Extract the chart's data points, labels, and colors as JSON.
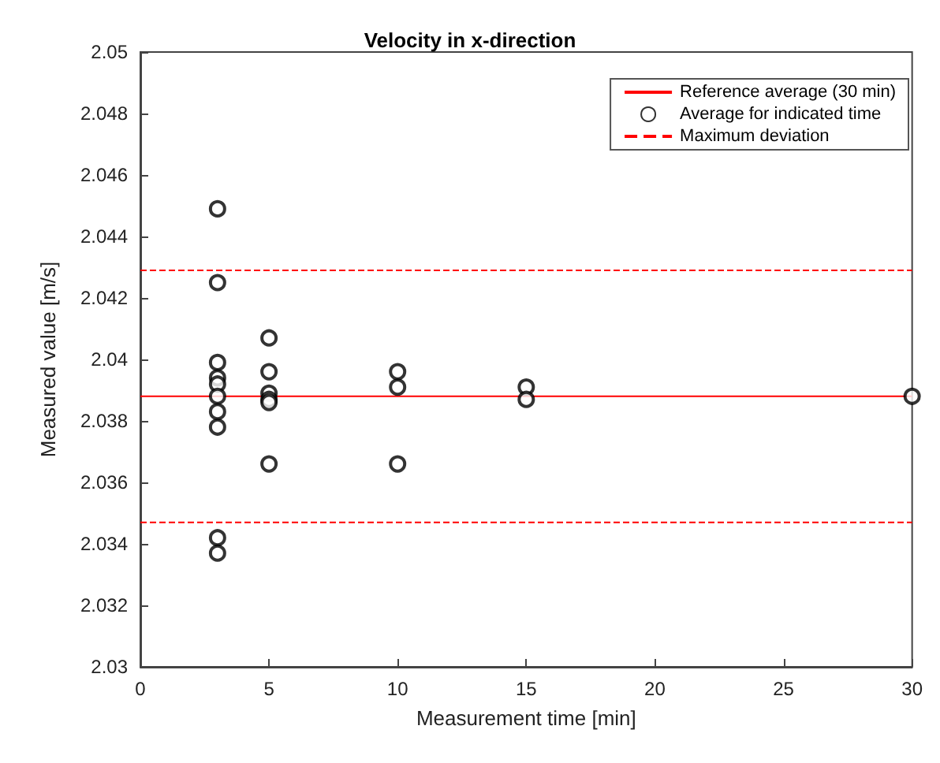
{
  "chart_data": {
    "type": "scatter",
    "title": "Velocity in x-direction",
    "xlabel": "Measurement time [min]",
    "ylabel": "Measured value [m/s]",
    "xlim": [
      0,
      30
    ],
    "xticks": [
      0,
      5,
      10,
      15,
      20,
      25,
      30
    ],
    "ylim": [
      2.03,
      2.05
    ],
    "yticks": [
      2.03,
      2.032,
      2.034,
      2.036,
      2.038,
      2.04,
      2.042,
      2.044,
      2.046,
      2.048,
      2.05
    ],
    "grid": false,
    "legend": "top right",
    "series": [
      {
        "name": "Reference average (30 min)",
        "type": "line",
        "color": "#ff0000",
        "line_style": "solid",
        "marker": "none",
        "x": [
          0,
          30
        ],
        "values": [
          2.0388,
          2.0388
        ]
      },
      {
        "name": "Average for indicated time",
        "color": "#000000",
        "marker": "circle",
        "x": [
          3,
          3,
          3,
          3,
          3,
          3,
          3,
          3,
          3,
          3,
          5,
          5,
          5,
          5,
          5,
          5,
          10,
          10,
          10,
          15,
          15,
          30
        ],
        "values": [
          2.0449,
          2.0425,
          2.0399,
          2.0394,
          2.0392,
          2.0388,
          2.0383,
          2.0378,
          2.0342,
          2.0337,
          2.0407,
          2.0396,
          2.0389,
          2.0387,
          2.0386,
          2.0366,
          2.0396,
          2.0391,
          2.0366,
          2.0391,
          2.0387,
          2.0388
        ]
      },
      {
        "name": "Maximum deviation",
        "type": "line",
        "color": "#ff0000",
        "line_style": "dashed",
        "marker": "none",
        "x": [
          0,
          30
        ],
        "values": [
          2.0429,
          2.0429
        ]
      },
      {
        "type": "line",
        "color": "#ff0000",
        "line_style": "dashed",
        "marker": "none",
        "x": [
          0,
          30
        ],
        "values": [
          2.0347,
          2.0347
        ]
      }
    ]
  }
}
